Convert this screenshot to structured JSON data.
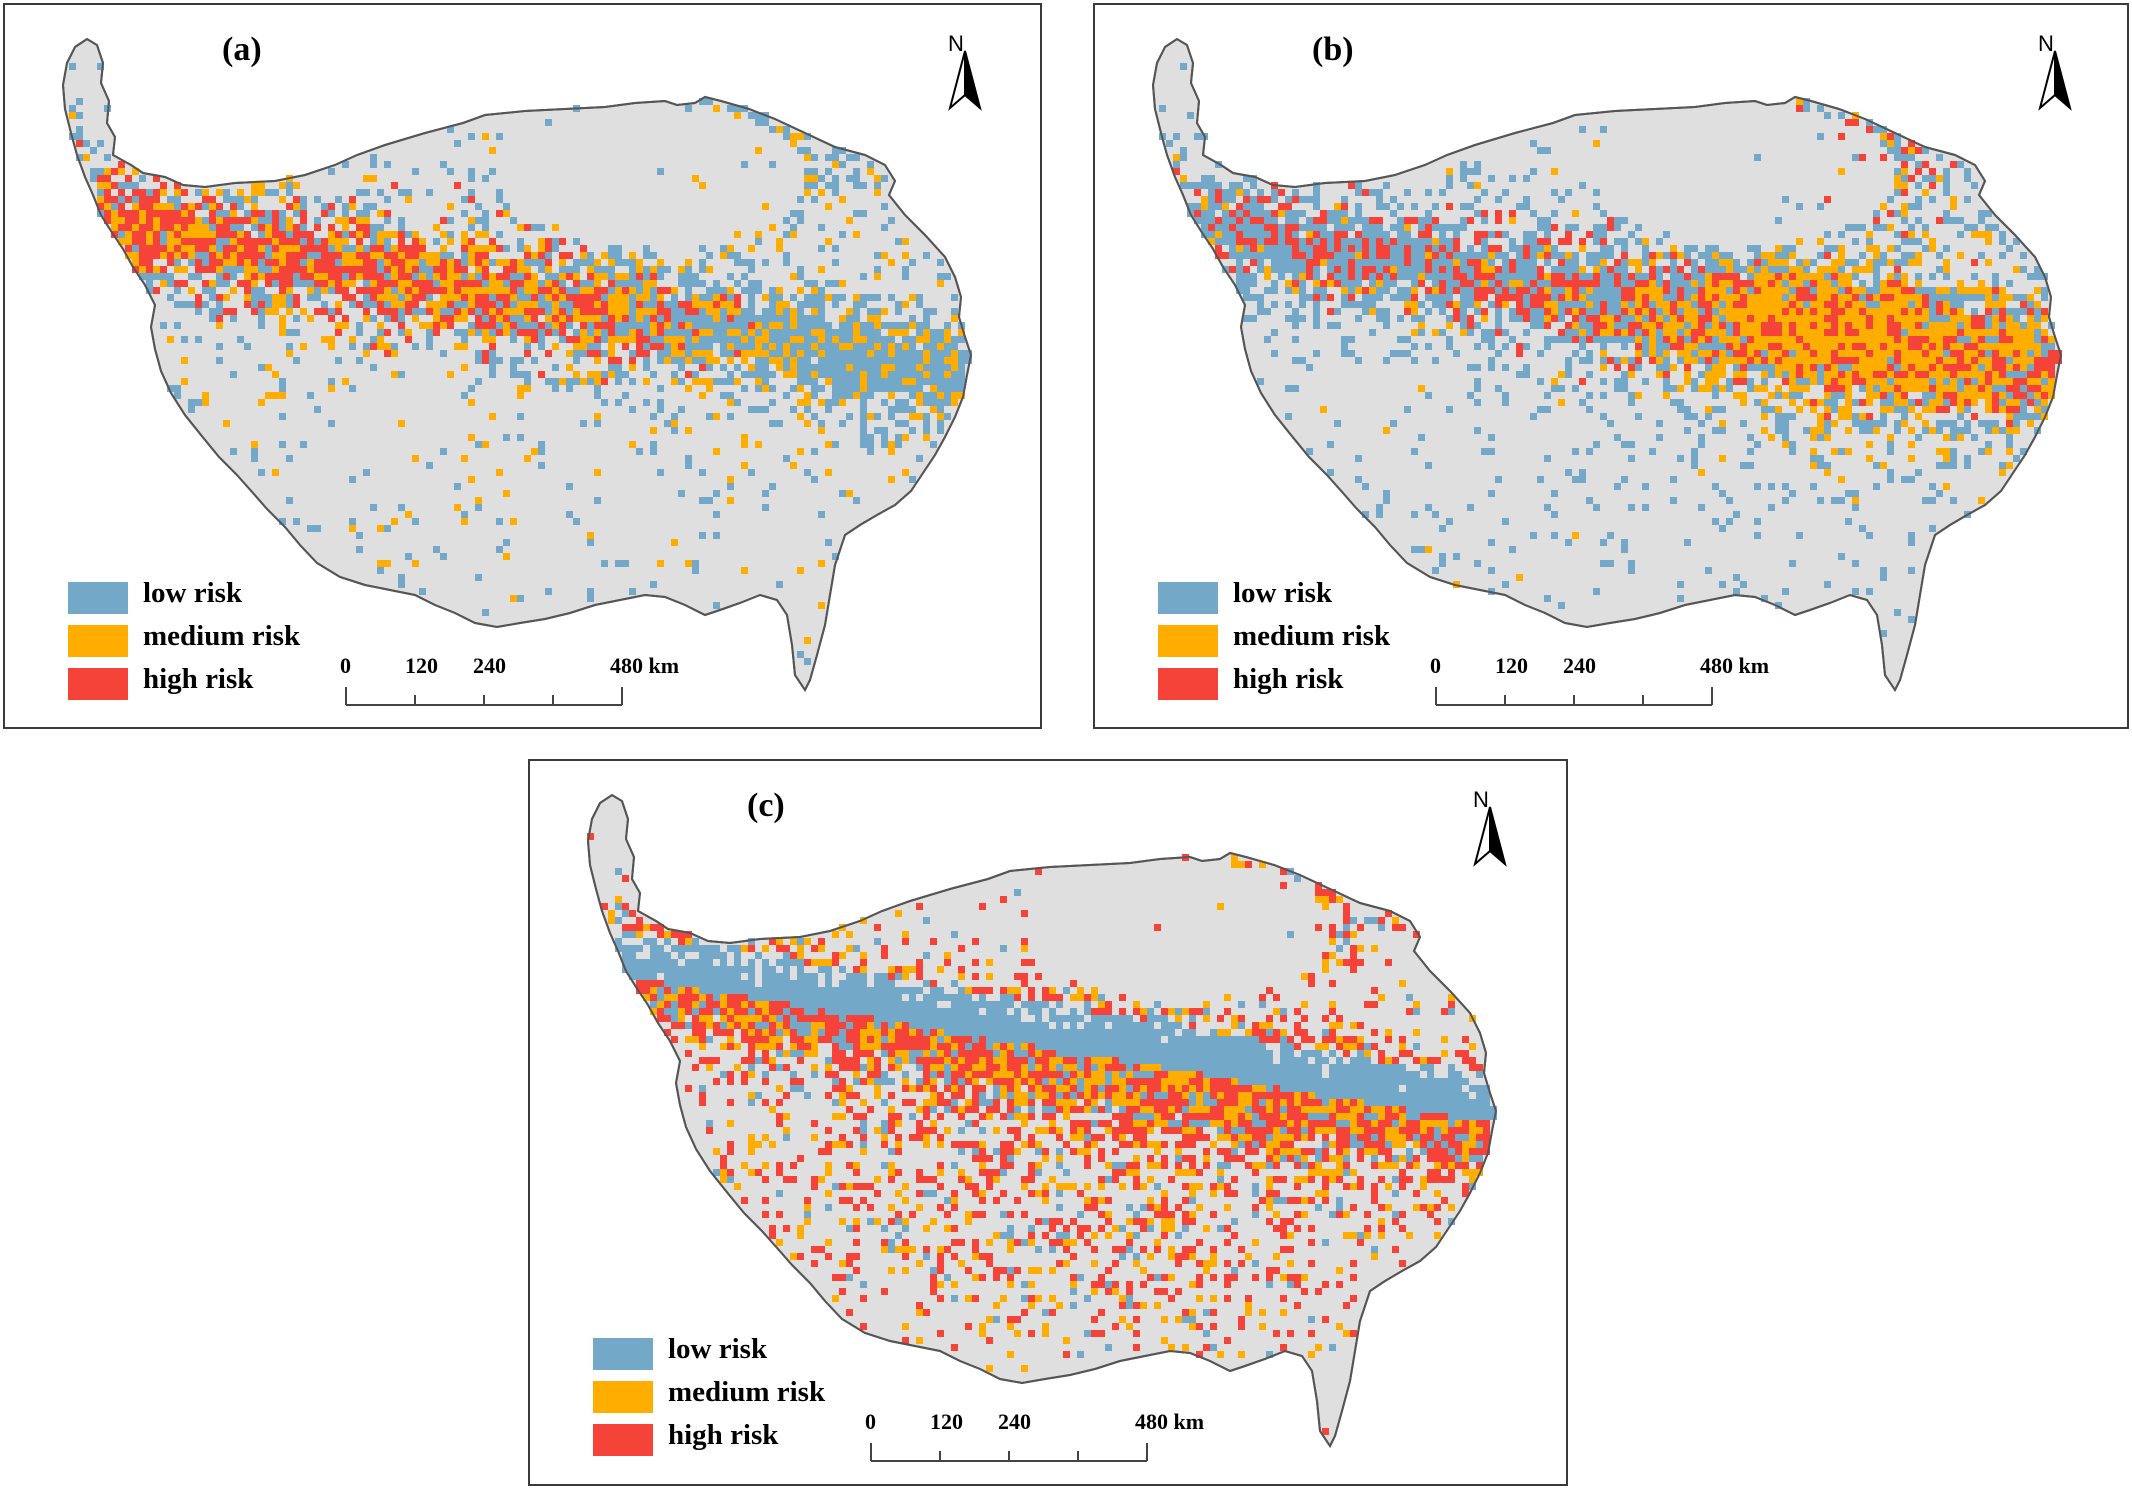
{
  "colors": {
    "background_land": "#dfdfdf",
    "low": "#73a8c9",
    "medium": "#ffae00",
    "high": "#f5433a",
    "outline": "#555555"
  },
  "north_arrow": {
    "letter": "N"
  },
  "legend": [
    {
      "key": "low",
      "label": "low risk",
      "color": "#73a8c9"
    },
    {
      "key": "medium",
      "label": "medium risk",
      "color": "#ffae00"
    },
    {
      "key": "high",
      "label": "high risk",
      "color": "#f5433a"
    }
  ],
  "scale": {
    "ticks": [
      "0",
      "120",
      "240",
      "480 km"
    ]
  },
  "panels": [
    {
      "id": "a",
      "label": "(a)"
    },
    {
      "id": "b",
      "label": "(b)"
    },
    {
      "id": "c",
      "label": "(c)"
    }
  ]
}
